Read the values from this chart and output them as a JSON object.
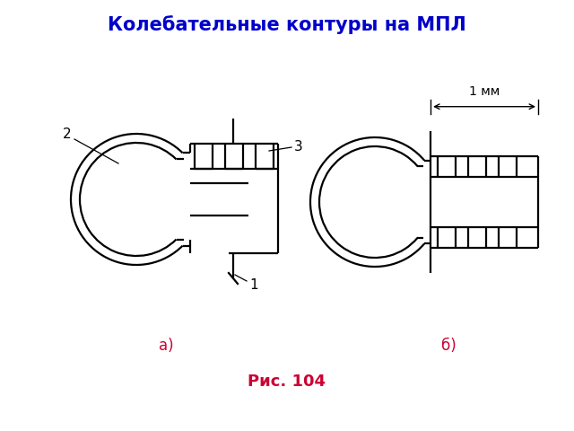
{
  "title": "Колебательные контуры на МПЛ",
  "title_color": "#0000CC",
  "title_fontsize": 15,
  "label_a": "а)",
  "label_b": "б)",
  "caption": "Рис. 104",
  "caption_color": "#CC0033",
  "caption_fontsize": 13,
  "label_fontsize": 12,
  "annotation_fontsize": 11,
  "bg_color": "#ffffff",
  "line_color": "#000000",
  "line_width": 1.6,
  "note_1mm": "1 мм"
}
